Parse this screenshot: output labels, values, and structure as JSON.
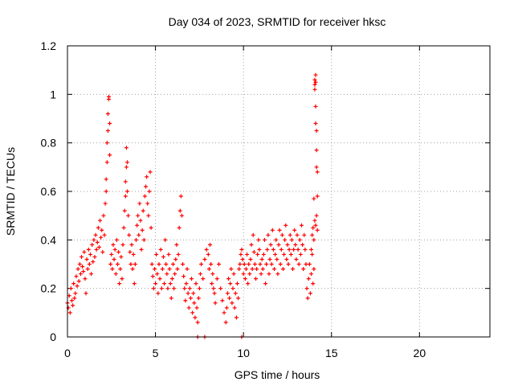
{
  "chart_data": {
    "type": "scatter",
    "title": "Day 034 of 2023, SRMTID for receiver hksc",
    "xlabel": "GPS time / hours",
    "ylabel": "SRMTID / TECUs",
    "xlim": [
      0,
      24
    ],
    "ylim": [
      0,
      1.2
    ],
    "xticks": [
      0,
      5,
      10,
      15,
      20
    ],
    "xtick_labels": [
      "0",
      "5",
      "10",
      "15",
      "20"
    ],
    "yticks": [
      0,
      0.2,
      0.4,
      0.6,
      0.8,
      1.0,
      1.2
    ],
    "ytick_labels": [
      "0",
      "0.2",
      "0.4",
      "0.6",
      "0.8",
      "1",
      "1.2"
    ],
    "grid": true,
    "marker": "plus",
    "color": "#ff0000",
    "series": [
      {
        "name": "SRMTID",
        "x": [
          0.0,
          0.05,
          0.1,
          0.15,
          0.2,
          0.25,
          0.3,
          0.35,
          0.4,
          0.45,
          0.5,
          0.55,
          0.6,
          0.65,
          0.7,
          0.75,
          0.8,
          0.85,
          0.9,
          0.95,
          1.0,
          1.05,
          1.1,
          1.15,
          1.2,
          1.25,
          1.3,
          1.35,
          1.4,
          1.45,
          1.5,
          1.55,
          1.6,
          1.65,
          1.7,
          1.75,
          1.8,
          1.85,
          1.9,
          1.95,
          2.0,
          2.05,
          2.1,
          2.15,
          2.2,
          2.2,
          2.25,
          2.25,
          2.3,
          2.3,
          2.35,
          2.35,
          2.4,
          2.4,
          2.45,
          2.5,
          2.55,
          2.6,
          2.65,
          2.7,
          2.75,
          2.8,
          2.85,
          2.9,
          2.95,
          3.0,
          3.05,
          3.1,
          3.15,
          3.2,
          3.25,
          3.3,
          3.3,
          3.35,
          3.35,
          3.4,
          3.4,
          3.45,
          3.5,
          3.55,
          3.6,
          3.65,
          3.7,
          3.75,
          3.8,
          3.85,
          3.9,
          3.95,
          4.0,
          4.05,
          4.1,
          4.15,
          4.2,
          4.25,
          4.3,
          4.35,
          4.4,
          4.45,
          4.5,
          4.55,
          4.6,
          4.65,
          4.7,
          4.75,
          4.8,
          4.85,
          4.9,
          4.95,
          5.0,
          5.05,
          5.1,
          5.15,
          5.2,
          5.25,
          5.3,
          5.35,
          5.4,
          5.45,
          5.5,
          5.55,
          5.6,
          5.65,
          5.7,
          5.75,
          5.8,
          5.85,
          5.9,
          5.95,
          6.0,
          6.05,
          6.1,
          6.15,
          6.2,
          6.25,
          6.3,
          6.35,
          6.4,
          6.45,
          6.5,
          6.55,
          6.6,
          6.65,
          6.7,
          6.75,
          6.8,
          6.85,
          6.9,
          6.95,
          7.0,
          7.05,
          7.1,
          7.15,
          7.2,
          7.25,
          7.3,
          7.35,
          7.4,
          7.45,
          7.5,
          7.55,
          7.6,
          7.7,
          7.8,
          7.9,
          8.0,
          8.05,
          8.1,
          8.15,
          8.2,
          8.25,
          8.3,
          8.35,
          8.4,
          8.5,
          8.6,
          8.7,
          8.8,
          8.9,
          9.0,
          9.05,
          9.1,
          9.15,
          9.2,
          9.25,
          9.3,
          9.35,
          9.4,
          9.45,
          9.5,
          9.55,
          9.6,
          9.65,
          9.7,
          9.75,
          9.8,
          9.85,
          9.9,
          9.95,
          10.0,
          10.05,
          10.1,
          10.15,
          10.2,
          10.25,
          10.3,
          10.35,
          10.4,
          10.45,
          10.5,
          10.55,
          10.6,
          10.65,
          10.7,
          10.75,
          10.8,
          10.85,
          10.9,
          10.95,
          11.0,
          11.05,
          11.1,
          11.15,
          11.2,
          11.25,
          11.3,
          11.35,
          11.4,
          11.45,
          11.5,
          11.55,
          11.6,
          11.65,
          11.7,
          11.75,
          11.8,
          11.85,
          11.9,
          11.95,
          12.0,
          12.05,
          12.1,
          12.15,
          12.2,
          12.25,
          12.3,
          12.35,
          12.4,
          12.45,
          12.5,
          12.55,
          12.6,
          12.65,
          12.7,
          12.75,
          12.8,
          12.85,
          12.9,
          12.95,
          13.0,
          13.05,
          13.1,
          13.15,
          13.2,
          13.25,
          13.3,
          13.35,
          13.4,
          13.45,
          13.5,
          13.55,
          13.6,
          13.65,
          13.7,
          13.75,
          13.8,
          13.85,
          13.9,
          13.95,
          14.0,
          14.0,
          14.05,
          14.05,
          14.05,
          14.1,
          14.1,
          14.1,
          14.1,
          14.15,
          14.15,
          14.15,
          14.2,
          14.2,
          14.0,
          14.05,
          13.9,
          13.95,
          13.85,
          14.1,
          14.15,
          14.2,
          7.4,
          7.8,
          9.9
        ],
        "y": [
          0.14,
          0.12,
          0.17,
          0.1,
          0.2,
          0.15,
          0.13,
          0.22,
          0.16,
          0.18,
          0.25,
          0.21,
          0.28,
          0.23,
          0.3,
          0.26,
          0.33,
          0.29,
          0.27,
          0.35,
          0.24,
          0.18,
          0.32,
          0.28,
          0.36,
          0.3,
          0.34,
          0.26,
          0.38,
          0.31,
          0.4,
          0.33,
          0.42,
          0.36,
          0.39,
          0.45,
          0.37,
          0.48,
          0.41,
          0.44,
          0.35,
          0.5,
          0.42,
          0.55,
          0.6,
          0.65,
          0.72,
          0.8,
          0.85,
          0.92,
          0.98,
          0.99,
          0.88,
          0.75,
          0.3,
          0.34,
          0.28,
          0.38,
          0.32,
          0.36,
          0.26,
          0.4,
          0.3,
          0.35,
          0.22,
          0.28,
          0.33,
          0.24,
          0.38,
          0.45,
          0.52,
          0.58,
          0.64,
          0.7,
          0.78,
          0.72,
          0.6,
          0.5,
          0.42,
          0.35,
          0.3,
          0.38,
          0.28,
          0.34,
          0.22,
          0.3,
          0.4,
          0.46,
          0.5,
          0.42,
          0.55,
          0.48,
          0.36,
          0.44,
          0.52,
          0.4,
          0.58,
          0.62,
          0.66,
          0.55,
          0.5,
          0.6,
          0.68,
          0.45,
          0.3,
          0.25,
          0.2,
          0.28,
          0.22,
          0.34,
          0.26,
          0.18,
          0.3,
          0.24,
          0.36,
          0.2,
          0.28,
          0.33,
          0.22,
          0.4,
          0.3,
          0.26,
          0.2,
          0.34,
          0.28,
          0.22,
          0.16,
          0.24,
          0.3,
          0.2,
          0.26,
          0.32,
          0.38,
          0.28,
          0.34,
          0.45,
          0.52,
          0.58,
          0.5,
          0.3,
          0.25,
          0.2,
          0.15,
          0.22,
          0.28,
          0.18,
          0.12,
          0.2,
          0.16,
          0.24,
          0.1,
          0.18,
          0.14,
          0.08,
          0.22,
          0.12,
          0.06,
          0.16,
          0.2,
          0.26,
          0.3,
          0.24,
          0.32,
          0.36,
          0.34,
          0.28,
          0.38,
          0.3,
          0.22,
          0.26,
          0.2,
          0.18,
          0.14,
          0.24,
          0.3,
          0.2,
          0.15,
          0.1,
          0.06,
          0.12,
          0.18,
          0.24,
          0.16,
          0.22,
          0.28,
          0.14,
          0.2,
          0.26,
          0.12,
          0.18,
          0.08,
          0.22,
          0.16,
          0.28,
          0.3,
          0.34,
          0.36,
          0.32,
          0.26,
          0.3,
          0.24,
          0.28,
          0.34,
          0.22,
          0.3,
          0.26,
          0.32,
          0.38,
          0.28,
          0.42,
          0.35,
          0.3,
          0.24,
          0.28,
          0.34,
          0.4,
          0.36,
          0.3,
          0.26,
          0.32,
          0.28,
          0.34,
          0.4,
          0.22,
          0.3,
          0.36,
          0.42,
          0.26,
          0.32,
          0.38,
          0.3,
          0.44,
          0.36,
          0.28,
          0.34,
          0.4,
          0.32,
          0.26,
          0.38,
          0.44,
          0.3,
          0.36,
          0.42,
          0.28,
          0.34,
          0.4,
          0.46,
          0.32,
          0.38,
          0.3,
          0.36,
          0.42,
          0.34,
          0.4,
          0.28,
          0.36,
          0.44,
          0.38,
          0.32,
          0.42,
          0.36,
          0.3,
          0.4,
          0.34,
          0.46,
          0.38,
          0.28,
          0.42,
          0.36,
          0.3,
          0.2,
          0.16,
          0.24,
          0.3,
          0.18,
          0.26,
          0.34,
          0.22,
          0.28,
          0.4,
          1.02,
          1.06,
          1.04,
          1.08,
          1.05,
          0.95,
          0.88,
          0.85,
          0.77,
          0.7,
          0.68,
          0.58,
          0.57,
          0.48,
          0.42,
          0.45,
          0.36,
          0.46,
          0.5,
          0.44,
          0.0,
          0.0,
          0.0
        ]
      }
    ]
  }
}
